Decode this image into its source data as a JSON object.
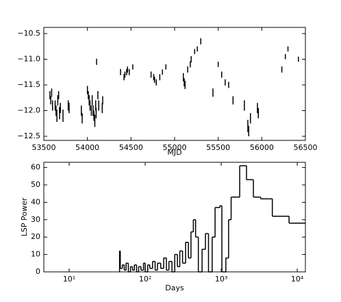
{
  "chart_data": [
    {
      "type": "errorbar",
      "xlabel": "MJD",
      "color": "#000000",
      "x": [
        53570,
        53580,
        53590,
        53600,
        53630,
        53640,
        53650,
        53660,
        53670,
        53680,
        53690,
        53720,
        53780,
        53790,
        53930,
        53940,
        54000,
        54010,
        54020,
        54030,
        54045,
        54055,
        54065,
        54075,
        54085,
        54095,
        54100,
        54105,
        54120,
        54130,
        54170,
        54175,
        54380,
        54420,
        54430,
        54450,
        54460,
        54480,
        54520,
        54730,
        54760,
        54770,
        54790,
        54830,
        54860,
        54900,
        55100,
        55110,
        55120,
        55150,
        55180,
        55190,
        55230,
        55260,
        55300,
        55440,
        55500,
        55540,
        55580,
        55620,
        55670,
        55800,
        55840,
        55850,
        55870,
        55950,
        55960,
        56230,
        56270,
        56300,
        56420
      ],
      "values": [
        -11.7,
        -11.8,
        -11.65,
        -11.9,
        -11.9,
        -12.0,
        -12.1,
        -11.8,
        -11.7,
        -12.05,
        -11.95,
        -12.1,
        -11.9,
        -11.95,
        -12.0,
        -12.15,
        -11.6,
        -11.7,
        -11.8,
        -11.9,
        -12.0,
        -11.8,
        -12.0,
        -12.1,
        -12.2,
        -11.9,
        -12.05,
        -11.05,
        -11.7,
        -11.9,
        -11.95,
        -11.8,
        -11.25,
        -11.35,
        -11.3,
        -11.25,
        -11.2,
        -11.25,
        -11.15,
        -11.3,
        -11.35,
        -11.4,
        -11.45,
        -11.35,
        -11.25,
        -11.15,
        -11.35,
        -11.45,
        -11.5,
        -11.2,
        -11.1,
        -11.0,
        -10.85,
        -10.8,
        -10.65,
        -11.65,
        -11.1,
        -11.3,
        -11.45,
        -11.5,
        -11.8,
        -11.9,
        -12.3,
        -12.4,
        -12.15,
        -11.95,
        -12.05,
        -11.2,
        -10.95,
        -10.8,
        -11.0
      ],
      "errors": [
        0.08,
        0.08,
        0.08,
        0.1,
        0.1,
        0.1,
        0.12,
        0.1,
        0.08,
        0.12,
        0.1,
        0.12,
        0.1,
        0.1,
        0.1,
        0.1,
        0.08,
        0.08,
        0.1,
        0.1,
        0.1,
        0.1,
        0.1,
        0.1,
        0.12,
        0.1,
        0.1,
        0.06,
        0.08,
        0.1,
        0.1,
        0.08,
        0.06,
        0.06,
        0.06,
        0.06,
        0.06,
        0.06,
        0.05,
        0.06,
        0.06,
        0.06,
        0.06,
        0.06,
        0.05,
        0.05,
        0.08,
        0.08,
        0.08,
        0.06,
        0.06,
        0.06,
        0.05,
        0.05,
        0.06,
        0.08,
        0.05,
        0.06,
        0.06,
        0.06,
        0.08,
        0.1,
        0.12,
        0.1,
        0.1,
        0.1,
        0.1,
        0.06,
        0.05,
        0.05,
        0.05
      ],
      "xlim": [
        53500,
        56500
      ],
      "xticks": [
        53500,
        54000,
        54500,
        55000,
        55500,
        56000,
        56500
      ],
      "ylim": [
        -12.58,
        -10.38
      ],
      "yticks": [
        {
          "value": -12.5,
          "label": "−12.5"
        },
        {
          "value": -12.0,
          "label": "−12.0"
        },
        {
          "value": -11.5,
          "label": "−11.5"
        },
        {
          "value": -11.0,
          "label": "−11.0"
        },
        {
          "value": -10.5,
          "label": "−10.5"
        }
      ]
    },
    {
      "type": "step",
      "xlabel": "Days",
      "ylabel": "LSP Power",
      "color": "#000000",
      "xscale": "log",
      "x": [
        45,
        46,
        47,
        50,
        53,
        56,
        60,
        64,
        68,
        72,
        77,
        82,
        88,
        95,
        100,
        108,
        115,
        125,
        135,
        145,
        160,
        175,
        190,
        205,
        225,
        245,
        265,
        285,
        310,
        340,
        370,
        400,
        430,
        460,
        500,
        560,
        620,
        680,
        760,
        830,
        960,
        1020,
        1150,
        1250,
        1350,
        1750,
        2150,
        2650,
        3300,
        4700,
        7800
      ],
      "values": [
        0,
        12,
        2,
        4,
        1,
        5,
        0,
        3,
        1,
        4,
        0,
        3,
        1,
        5,
        0,
        4,
        2,
        6,
        1,
        5,
        2,
        8,
        1,
        6,
        0,
        10,
        3,
        12,
        5,
        17,
        8,
        23,
        30,
        20,
        0,
        13,
        22,
        0,
        20,
        37,
        38,
        0,
        8,
        30,
        43,
        61,
        53,
        43,
        42,
        32,
        28
      ],
      "xlim": [
        4.64,
        12800
      ],
      "xticks": [
        {
          "value": 10,
          "label": "10¹"
        },
        {
          "value": 100,
          "label": "10²"
        },
        {
          "value": 1000,
          "label": "10³"
        },
        {
          "value": 10000,
          "label": "10⁴"
        }
      ],
      "ylim": [
        0,
        63
      ],
      "yticks": [
        0,
        10,
        20,
        30,
        40,
        50,
        60
      ]
    }
  ]
}
